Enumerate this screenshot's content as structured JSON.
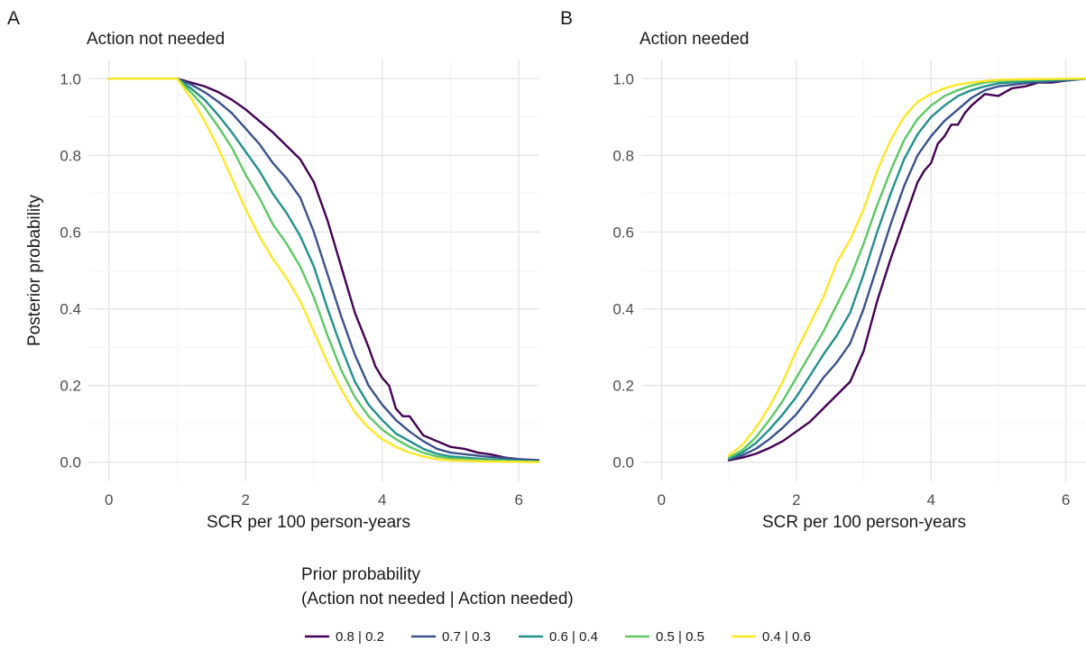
{
  "chart_data": [
    {
      "tag": "A",
      "type": "line",
      "title": "Action not needed",
      "xlabel": "SCR per 100 person-years",
      "ylabel": "Posterior probability",
      "xlim": [
        -0.3,
        6.3
      ],
      "ylim": [
        -0.05,
        1.05
      ],
      "xticks": [
        0,
        2,
        4,
        6
      ],
      "yticks": [
        0.0,
        0.2,
        0.4,
        0.6,
        0.8,
        1.0
      ],
      "ytick_labels": [
        "0.0",
        "0.2",
        "0.4",
        "0.6",
        "0.8",
        "1.0"
      ],
      "grid": true,
      "series": [
        {
          "name": "0.8 | 0.2",
          "color": "#440154",
          "x": [
            0,
            0.5,
            1.0,
            1.2,
            1.4,
            1.6,
            1.8,
            2.0,
            2.2,
            2.4,
            2.6,
            2.8,
            3.0,
            3.2,
            3.4,
            3.6,
            3.8,
            3.9,
            4.0,
            4.1,
            4.2,
            4.3,
            4.4,
            4.5,
            4.6,
            4.8,
            5.0,
            5.2,
            5.4,
            5.6,
            5.8,
            6.0,
            6.3
          ],
          "y": [
            1.0,
            1.0,
            1.0,
            0.99,
            0.98,
            0.965,
            0.945,
            0.92,
            0.89,
            0.86,
            0.825,
            0.79,
            0.73,
            0.63,
            0.51,
            0.39,
            0.3,
            0.25,
            0.22,
            0.2,
            0.14,
            0.12,
            0.12,
            0.095,
            0.07,
            0.055,
            0.04,
            0.035,
            0.025,
            0.02,
            0.012,
            0.008,
            0.005
          ]
        },
        {
          "name": "0.7 | 0.3",
          "color": "#3B528B",
          "x": [
            0,
            0.5,
            1.0,
            1.2,
            1.4,
            1.6,
            1.8,
            2.0,
            2.2,
            2.4,
            2.6,
            2.8,
            3.0,
            3.2,
            3.4,
            3.6,
            3.8,
            4.0,
            4.2,
            4.4,
            4.6,
            4.8,
            5.0,
            5.5,
            6.0,
            6.3
          ],
          "y": [
            1.0,
            1.0,
            1.0,
            0.985,
            0.965,
            0.94,
            0.91,
            0.87,
            0.83,
            0.78,
            0.74,
            0.69,
            0.6,
            0.49,
            0.38,
            0.28,
            0.2,
            0.15,
            0.11,
            0.08,
            0.055,
            0.035,
            0.025,
            0.015,
            0.008,
            0.004
          ]
        },
        {
          "name": "0.6 | 0.4",
          "color": "#21908C",
          "x": [
            0,
            0.5,
            1.0,
            1.2,
            1.4,
            1.6,
            1.8,
            2.0,
            2.2,
            2.4,
            2.6,
            2.8,
            3.0,
            3.2,
            3.4,
            3.6,
            3.8,
            4.0,
            4.2,
            4.4,
            4.6,
            4.8,
            5.0,
            5.5,
            6.0,
            6.3
          ],
          "y": [
            1.0,
            1.0,
            1.0,
            0.975,
            0.945,
            0.905,
            0.86,
            0.81,
            0.76,
            0.7,
            0.65,
            0.59,
            0.51,
            0.4,
            0.3,
            0.21,
            0.15,
            0.11,
            0.075,
            0.055,
            0.035,
            0.022,
            0.015,
            0.008,
            0.004,
            0.002
          ]
        },
        {
          "name": "0.5 | 0.5",
          "color": "#5DC863",
          "x": [
            0,
            0.5,
            1.0,
            1.2,
            1.4,
            1.6,
            1.8,
            2.0,
            2.2,
            2.4,
            2.6,
            2.8,
            3.0,
            3.2,
            3.4,
            3.6,
            3.8,
            4.0,
            4.2,
            4.4,
            4.6,
            4.8,
            5.0,
            5.5,
            6.0,
            6.3
          ],
          "y": [
            1.0,
            1.0,
            1.0,
            0.965,
            0.925,
            0.875,
            0.82,
            0.75,
            0.69,
            0.62,
            0.57,
            0.51,
            0.43,
            0.33,
            0.24,
            0.17,
            0.12,
            0.085,
            0.06,
            0.04,
            0.025,
            0.015,
            0.01,
            0.005,
            0.002,
            0.001
          ]
        },
        {
          "name": "0.4 | 0.6",
          "color": "#FDE725",
          "x": [
            0,
            0.5,
            1.0,
            1.2,
            1.4,
            1.6,
            1.8,
            2.0,
            2.2,
            2.4,
            2.6,
            2.8,
            3.0,
            3.2,
            3.4,
            3.6,
            3.8,
            4.0,
            4.2,
            4.4,
            4.6,
            4.8,
            5.0,
            5.5,
            6.0,
            6.3
          ],
          "y": [
            1.0,
            1.0,
            1.0,
            0.95,
            0.89,
            0.82,
            0.74,
            0.66,
            0.59,
            0.53,
            0.48,
            0.42,
            0.34,
            0.26,
            0.19,
            0.13,
            0.09,
            0.06,
            0.04,
            0.025,
            0.015,
            0.008,
            0.005,
            0.002,
            0.001,
            0.0
          ]
        }
      ]
    },
    {
      "tag": "B",
      "type": "line",
      "title": "Action needed",
      "xlabel": "SCR per 100 person-years",
      "ylabel": "",
      "xlim": [
        -0.3,
        6.3
      ],
      "ylim": [
        -0.05,
        1.05
      ],
      "xticks": [
        0,
        2,
        4,
        6
      ],
      "yticks": [
        0.0,
        0.2,
        0.4,
        0.6,
        0.8,
        1.0
      ],
      "ytick_labels": [
        "0.0",
        "0.2",
        "0.4",
        "0.6",
        "0.8",
        "1.0"
      ],
      "grid": true,
      "series": [
        {
          "name": "0.8 | 0.2",
          "color": "#440154",
          "x": [
            1.0,
            1.2,
            1.4,
            1.6,
            1.8,
            2.0,
            2.2,
            2.4,
            2.6,
            2.8,
            3.0,
            3.2,
            3.4,
            3.6,
            3.8,
            3.9,
            4.0,
            4.1,
            4.2,
            4.3,
            4.4,
            4.5,
            4.6,
            4.7,
            4.8,
            5.0,
            5.2,
            5.4,
            5.6,
            5.8,
            6.0,
            6.3
          ],
          "y": [
            0.005,
            0.012,
            0.022,
            0.037,
            0.055,
            0.08,
            0.105,
            0.14,
            0.175,
            0.21,
            0.29,
            0.42,
            0.53,
            0.63,
            0.73,
            0.76,
            0.78,
            0.83,
            0.85,
            0.88,
            0.88,
            0.91,
            0.93,
            0.945,
            0.96,
            0.955,
            0.975,
            0.98,
            0.99,
            0.99,
            0.995,
            1.0
          ]
        },
        {
          "name": "0.7 | 0.3",
          "color": "#3B528B",
          "x": [
            1.0,
            1.2,
            1.4,
            1.6,
            1.8,
            2.0,
            2.2,
            2.4,
            2.6,
            2.8,
            3.0,
            3.2,
            3.4,
            3.6,
            3.8,
            4.0,
            4.2,
            4.4,
            4.6,
            4.8,
            5.0,
            5.5,
            6.0,
            6.3
          ],
          "y": [
            0.007,
            0.018,
            0.035,
            0.06,
            0.09,
            0.125,
            0.17,
            0.22,
            0.26,
            0.31,
            0.4,
            0.51,
            0.62,
            0.72,
            0.8,
            0.85,
            0.89,
            0.92,
            0.95,
            0.97,
            0.98,
            0.99,
            0.995,
            1.0
          ]
        },
        {
          "name": "0.6 | 0.4",
          "color": "#21908C",
          "x": [
            1.0,
            1.2,
            1.4,
            1.6,
            1.8,
            2.0,
            2.2,
            2.4,
            2.6,
            2.8,
            3.0,
            3.2,
            3.4,
            3.6,
            3.8,
            4.0,
            4.2,
            4.4,
            4.6,
            4.8,
            5.0,
            5.5,
            6.0,
            6.3
          ],
          "y": [
            0.01,
            0.025,
            0.05,
            0.085,
            0.125,
            0.17,
            0.225,
            0.28,
            0.33,
            0.39,
            0.49,
            0.6,
            0.7,
            0.79,
            0.855,
            0.9,
            0.93,
            0.955,
            0.97,
            0.98,
            0.988,
            0.994,
            0.998,
            1.0
          ]
        },
        {
          "name": "0.5 | 0.5",
          "color": "#5DC863",
          "x": [
            1.0,
            1.2,
            1.4,
            1.6,
            1.8,
            2.0,
            2.2,
            2.4,
            2.6,
            2.8,
            3.0,
            3.2,
            3.4,
            3.6,
            3.8,
            4.0,
            4.2,
            4.4,
            4.6,
            4.8,
            5.0,
            5.5,
            6.0,
            6.3
          ],
          "y": [
            0.012,
            0.032,
            0.065,
            0.11,
            0.16,
            0.22,
            0.28,
            0.34,
            0.41,
            0.48,
            0.57,
            0.67,
            0.76,
            0.84,
            0.895,
            0.93,
            0.955,
            0.97,
            0.982,
            0.99,
            0.994,
            0.997,
            0.999,
            1.0
          ]
        },
        {
          "name": "0.4 | 0.6",
          "color": "#FDE725",
          "x": [
            1.0,
            1.2,
            1.4,
            1.6,
            1.8,
            2.0,
            2.2,
            2.4,
            2.6,
            2.8,
            3.0,
            3.2,
            3.4,
            3.6,
            3.8,
            4.0,
            4.2,
            4.4,
            4.6,
            4.8,
            5.0,
            5.5,
            6.0,
            6.3
          ],
          "y": [
            0.018,
            0.045,
            0.09,
            0.145,
            0.21,
            0.29,
            0.36,
            0.43,
            0.52,
            0.58,
            0.66,
            0.76,
            0.84,
            0.9,
            0.94,
            0.96,
            0.975,
            0.985,
            0.99,
            0.994,
            0.997,
            0.999,
            1.0,
            1.0
          ]
        }
      ]
    }
  ],
  "legend": {
    "title_line1": "Prior probability",
    "title_line2": "(Action not needed | Action needed)",
    "items": [
      {
        "label": "0.8 | 0.2",
        "color": "#440154"
      },
      {
        "label": "0.7 | 0.3",
        "color": "#3B528B"
      },
      {
        "label": "0.6 | 0.4",
        "color": "#21908C"
      },
      {
        "label": "0.5 | 0.5",
        "color": "#5DC863"
      },
      {
        "label": "0.4 | 0.6",
        "color": "#FDE725"
      }
    ]
  }
}
